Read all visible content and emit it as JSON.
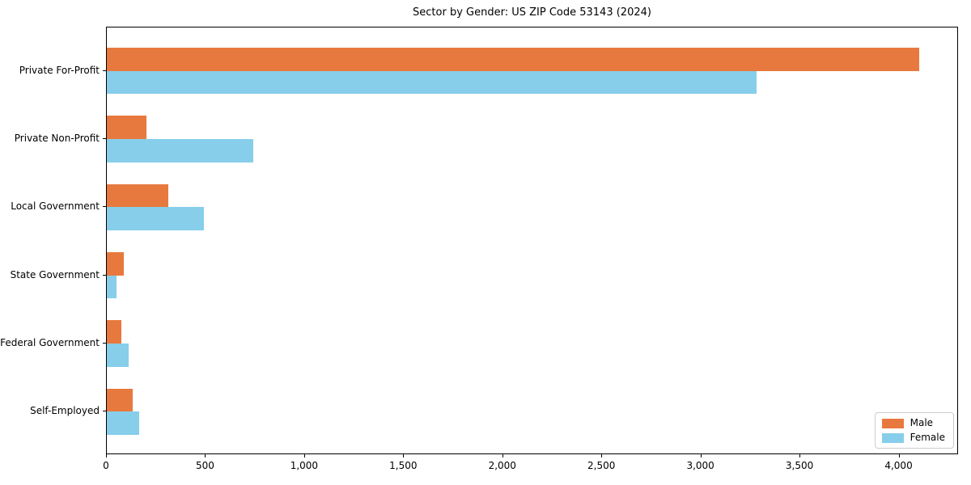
{
  "title": "Sector by Gender: US ZIP Code 53143 (2024)",
  "chart_data": {
    "type": "bar",
    "orientation": "horizontal",
    "title": "Sector by Gender: US ZIP Code 53143 (2024)",
    "categories": [
      "Private For-Profit",
      "Private Non-Profit",
      "Local Government",
      "State Government",
      "Federal Government",
      "Self-Employed"
    ],
    "series": [
      {
        "name": "Male",
        "color": "#e8793e",
        "values": [
          4100,
          200,
          310,
          85,
          75,
          130
        ]
      },
      {
        "name": "Female",
        "color": "#87ceeb",
        "values": [
          3280,
          740,
          490,
          50,
          110,
          165
        ]
      }
    ],
    "xlabel": "",
    "ylabel": "",
    "xlim": [
      0,
      4300
    ],
    "xticks": [
      0,
      500,
      1000,
      1500,
      2000,
      2500,
      3000,
      3500,
      4000
    ],
    "xtick_labels": [
      "0",
      "500",
      "1,000",
      "1,500",
      "2,000",
      "2,500",
      "3,000",
      "3,500",
      "4,000"
    ],
    "legend": {
      "position": "lower right",
      "entries": [
        "Male",
        "Female"
      ]
    },
    "grid": false,
    "background": "#ffffff"
  }
}
